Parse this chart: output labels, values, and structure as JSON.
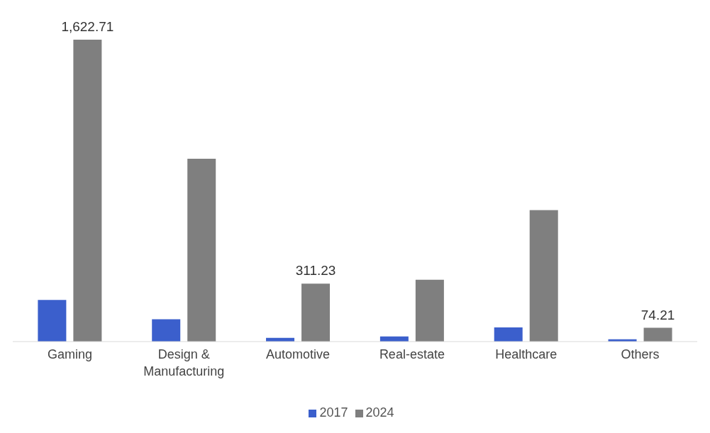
{
  "chart_data": {
    "type": "bar",
    "categories": [
      "Gaming",
      "Design & Manufacturing",
      "Automotive",
      "Real-estate",
      "Healthcare",
      "Others"
    ],
    "series": [
      {
        "name": "2017",
        "color": "#3b5fcc",
        "values": [
          224,
          120,
          20,
          28,
          76,
          12
        ]
      },
      {
        "name": "2024",
        "color": "#7f7f7f",
        "values": [
          1622.71,
          983,
          311.23,
          332,
          707,
          74.21
        ],
        "value_labels": [
          "1,622.71",
          null,
          "311.23",
          null,
          null,
          "74.21"
        ]
      }
    ],
    "legend": "bottom",
    "grid": false
  }
}
